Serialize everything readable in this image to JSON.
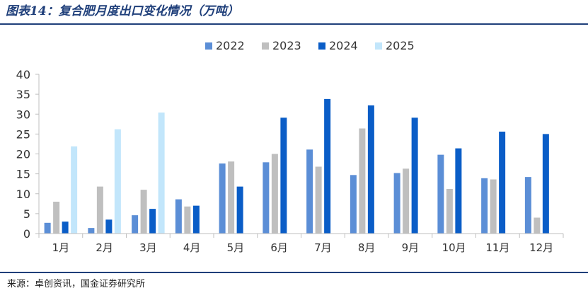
{
  "title": "图表14：复合肥月度出口变化情况（万吨）",
  "source": "来源：卓创资讯，国金证券研究所",
  "colors": {
    "series": [
      "#5b8ed6",
      "#bfbfbf",
      "#0a5dc7",
      "#c2e6fb"
    ],
    "axis": "#bfbfbf",
    "text": "#333333",
    "accent": "#1f3f7a"
  },
  "chart_data": {
    "type": "bar",
    "title": "复合肥月度出口变化情况（万吨）",
    "xlabel": "",
    "ylabel": "",
    "ylim": [
      0,
      40
    ],
    "yticks": [
      0,
      5,
      10,
      15,
      20,
      25,
      30,
      35,
      40
    ],
    "grid": false,
    "legend": "top-center",
    "categories": [
      "1月",
      "2月",
      "3月",
      "4月",
      "5月",
      "6月",
      "7月",
      "8月",
      "9月",
      "10月",
      "11月",
      "12月"
    ],
    "series": [
      {
        "name": "2022",
        "values": [
          2.7,
          1.4,
          4.6,
          8.6,
          17.6,
          17.9,
          21.1,
          14.7,
          15.2,
          19.8,
          13.9,
          14.2
        ]
      },
      {
        "name": "2023",
        "values": [
          8.0,
          11.8,
          11.0,
          6.8,
          18.1,
          20.0,
          16.8,
          26.4,
          16.3,
          11.2,
          13.6,
          4.0
        ]
      },
      {
        "name": "2024",
        "values": [
          3.0,
          3.5,
          6.2,
          7.0,
          11.8,
          29.1,
          33.8,
          32.2,
          29.1,
          21.4,
          25.6,
          25.0
        ]
      },
      {
        "name": "2025",
        "values": [
          21.9,
          26.2,
          30.4,
          null,
          null,
          null,
          null,
          null,
          null,
          null,
          null,
          null
        ]
      }
    ]
  }
}
